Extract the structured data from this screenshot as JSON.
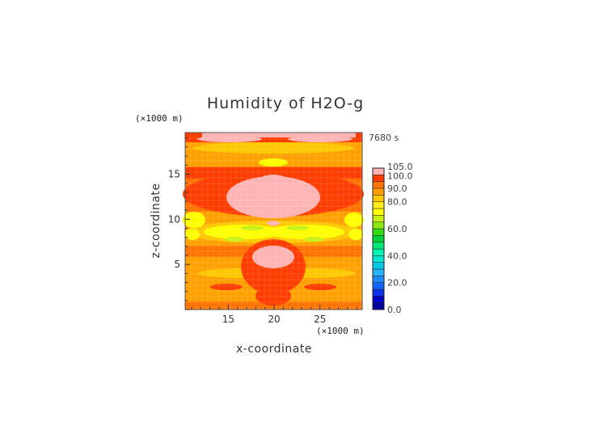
{
  "chart_data": {
    "type": "heatmap",
    "title": "Humidity of H2O-g",
    "xlabel": "x-coordinate",
    "ylabel": "z-coordinate",
    "x_unit": "(×1000 m)",
    "y_unit": "(×1000 m)",
    "time_label": "7680 s",
    "xlim": [
      10.3,
      29.6
    ],
    "ylim": [
      0.0,
      19.6
    ],
    "x_ticks": [
      15,
      20,
      25
    ],
    "y_ticks": [
      5,
      10,
      15
    ],
    "colorbar": {
      "levels": [
        0,
        5,
        10,
        15,
        20,
        25,
        30,
        35,
        40,
        45,
        50,
        55,
        60,
        65,
        70,
        75,
        80,
        85,
        90,
        95,
        100,
        105
      ],
      "colors": [
        "#00009e",
        "#0000c8",
        "#0a32e6",
        "#1464ff",
        "#1e8cff",
        "#28b4ff",
        "#00c8e6",
        "#00e6d2",
        "#00f5b4",
        "#00e678",
        "#00d23c",
        "#32dc14",
        "#8ce614",
        "#c8f014",
        "#ffff00",
        "#ffeb1e",
        "#ffc800",
        "#ffa000",
        "#ff7300",
        "#ff3c00",
        "#ffb4b4"
      ],
      "tick_labels": [
        "0.0",
        "20.0",
        "40.0",
        "60.0",
        "80.0",
        "90.0",
        "100.0",
        "105.0"
      ],
      "tick_values": [
        0,
        20,
        40,
        60,
        80,
        90,
        100,
        105
      ]
    },
    "grid": false,
    "legend": "right"
  }
}
